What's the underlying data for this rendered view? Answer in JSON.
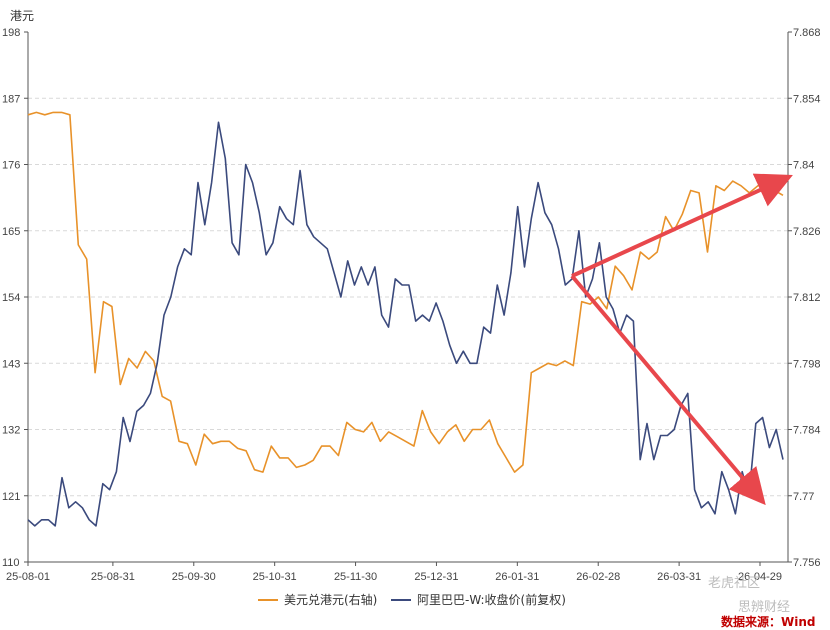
{
  "chart_data": {
    "type": "line",
    "left_axis_unit": "港元",
    "left_ylim": [
      110,
      198
    ],
    "left_ticks": [
      198,
      187,
      176,
      165,
      154,
      143,
      132,
      121,
      110
    ],
    "right_ylim": [
      7.756,
      7.868
    ],
    "right_ticks": [
      "7.868",
      "7.854",
      "7.84",
      "7.826",
      "7.812",
      "7.798",
      "7.784",
      "7.77",
      "7.756"
    ],
    "x_tick_labels": [
      "25-08-01",
      "25-08-31",
      "25-09-30",
      "25-10-31",
      "25-11-30",
      "25-12-31",
      "26-01-31",
      "26-02-28",
      "26-03-31",
      "26-04-29"
    ],
    "series": [
      {
        "name": "美元兑港元(右轴)",
        "axis": "right",
        "color": "#e8922a",
        "values": [
          7.8505,
          7.851,
          7.8505,
          7.851,
          7.851,
          7.8505,
          7.823,
          7.82,
          7.796,
          7.811,
          7.81,
          7.7935,
          7.799,
          7.797,
          7.8005,
          7.7985,
          7.791,
          7.79,
          7.7815,
          7.781,
          7.7765,
          7.783,
          7.781,
          7.7815,
          7.7815,
          7.78,
          7.7795,
          7.7755,
          7.775,
          7.7805,
          7.778,
          7.778,
          7.776,
          7.7765,
          7.7775,
          7.7805,
          7.7805,
          7.7785,
          7.7855,
          7.784,
          7.7835,
          7.7855,
          7.7815,
          7.7835,
          7.7825,
          7.7815,
          7.7805,
          7.788,
          7.7835,
          7.781,
          7.7835,
          7.785,
          7.7815,
          7.784,
          7.784,
          7.786,
          7.781,
          7.778,
          7.775,
          7.7765,
          7.796,
          7.797,
          7.798,
          7.7975,
          7.7985,
          7.7975,
          7.811,
          7.8105,
          7.812,
          7.8095,
          7.8185,
          7.8165,
          7.8135,
          7.8215,
          7.82,
          7.8215,
          7.829,
          7.826,
          7.8295,
          7.8345,
          7.834,
          7.8215,
          7.8355,
          7.8345,
          7.8365,
          7.8355,
          7.834,
          7.8355,
          7.8365,
          7.8345,
          7.8335
        ]
      },
      {
        "name": "阿里巴巴-W:收盘价(前复权)",
        "axis": "left",
        "color": "#3b4a7d",
        "values": [
          117,
          116,
          117,
          117,
          116,
          124,
          119,
          120,
          119,
          117,
          116,
          123,
          122,
          125,
          134,
          130,
          135,
          136,
          138,
          143,
          151,
          154,
          159,
          162,
          161,
          173,
          166,
          173,
          183,
          177,
          163,
          161,
          176,
          173,
          168,
          161,
          163,
          169,
          167,
          166,
          175,
          166,
          164,
          163,
          162,
          158,
          154,
          160,
          156,
          159,
          156,
          159,
          151,
          149,
          157,
          156,
          156,
          150,
          151,
          150,
          153,
          150,
          146,
          143,
          145,
          143,
          143,
          149,
          148,
          156,
          151,
          158,
          169,
          159,
          167,
          173,
          168,
          166,
          162,
          156,
          157,
          165,
          154,
          157,
          163,
          154,
          152,
          148,
          151,
          150,
          127,
          133,
          127,
          131,
          131,
          132,
          136,
          138,
          122,
          119,
          120,
          118,
          125,
          122,
          118,
          125,
          121,
          133,
          134,
          129,
          132,
          127
        ]
      }
    ],
    "legend": [
      "美元兑港元(右轴)",
      "阿里巴巴-W:收盘价(前复权)"
    ],
    "legend_position": "bottom",
    "grid": "horizontal-dashed",
    "source_note": "数据来源：Wind",
    "watermark_lines": [
      "老虎社区",
      "思辨财经"
    ]
  }
}
